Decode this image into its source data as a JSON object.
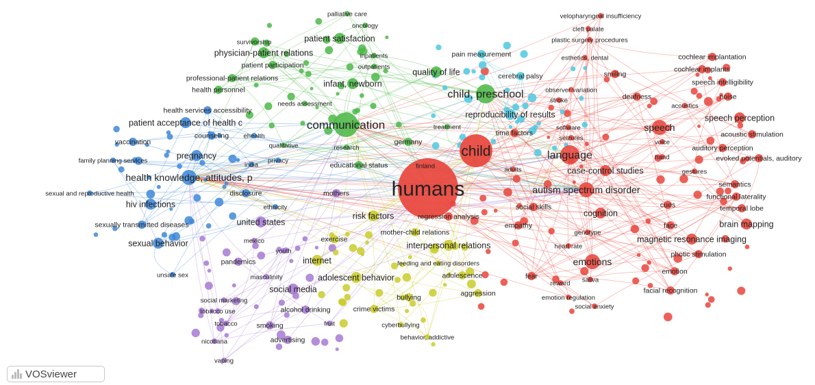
{
  "app": {
    "name": "VOSviewer"
  },
  "clusters": {
    "red": "#e8453c",
    "green": "#4cb848",
    "blue": "#3f88d8",
    "yellow": "#c9cc2c",
    "purple": "#a67ad2",
    "cyan": "#4ec8e0"
  },
  "terms": [
    {
      "label": "humans",
      "cluster": "red",
      "weight": 10
    },
    {
      "label": "child",
      "cluster": "red",
      "weight": 7
    },
    {
      "label": "language",
      "cluster": "red",
      "weight": 5
    },
    {
      "label": "autism spectrum disorder",
      "cluster": "red",
      "weight": 4
    },
    {
      "label": "speech",
      "cluster": "red",
      "weight": 4
    },
    {
      "label": "speech perception",
      "cluster": "red",
      "weight": 3
    },
    {
      "label": "emotions",
      "cluster": "red",
      "weight": 4
    },
    {
      "label": "magnetic resonance imaging",
      "cluster": "red",
      "weight": 3
    },
    {
      "label": "cognition",
      "cluster": "red",
      "weight": 3
    },
    {
      "label": "case-control studies",
      "cluster": "red",
      "weight": 3
    },
    {
      "label": "brain mapping",
      "cluster": "red",
      "weight": 3
    },
    {
      "label": "acoustic stimulation",
      "cluster": "red",
      "weight": 2
    },
    {
      "label": "auditory perception",
      "cluster": "red",
      "weight": 2
    },
    {
      "label": "speech intelligibility",
      "cluster": "red",
      "weight": 2
    },
    {
      "label": "cochlear implants",
      "cluster": "red",
      "weight": 2
    },
    {
      "label": "cochlear implantation",
      "cluster": "red",
      "weight": 2
    },
    {
      "label": "deafness",
      "cluster": "red",
      "weight": 2
    },
    {
      "label": "noise",
      "cluster": "red",
      "weight": 2
    },
    {
      "label": "acoustics",
      "cluster": "red",
      "weight": 1
    },
    {
      "label": "smiling",
      "cluster": "red",
      "weight": 2
    },
    {
      "label": "observer variation",
      "cluster": "red",
      "weight": 1
    },
    {
      "label": "esthetics, dental",
      "cluster": "red",
      "weight": 1
    },
    {
      "label": "plastic surgery procedures",
      "cluster": "red",
      "weight": 1
    },
    {
      "label": "cleft palate",
      "cluster": "red",
      "weight": 1
    },
    {
      "label": "velopharyngeal insufficiency",
      "cluster": "red",
      "weight": 1
    },
    {
      "label": "evoked potentials, auditory",
      "cluster": "red",
      "weight": 2
    },
    {
      "label": "gestures",
      "cluster": "red",
      "weight": 1
    },
    {
      "label": "hand",
      "cluster": "red",
      "weight": 1
    },
    {
      "label": "voice",
      "cluster": "red",
      "weight": 1
    },
    {
      "label": "semantics",
      "cluster": "red",
      "weight": 2
    },
    {
      "label": "functional laterality",
      "cluster": "red",
      "weight": 2
    },
    {
      "label": "temporal lobe",
      "cluster": "red",
      "weight": 2
    },
    {
      "label": "cues",
      "cluster": "red",
      "weight": 2
    },
    {
      "label": "face",
      "cluster": "red",
      "weight": 2
    },
    {
      "label": "photic stimulation",
      "cluster": "red",
      "weight": 2
    },
    {
      "label": "emotion",
      "cluster": "red",
      "weight": 2
    },
    {
      "label": "facial recognition",
      "cluster": "red",
      "weight": 2
    },
    {
      "label": "social anxiety",
      "cluster": "red",
      "weight": 1
    },
    {
      "label": "emotion regulation",
      "cluster": "red",
      "weight": 1
    },
    {
      "label": "saliva",
      "cluster": "red",
      "weight": 1
    },
    {
      "label": "reward",
      "cluster": "red",
      "weight": 1
    },
    {
      "label": "fear",
      "cluster": "red",
      "weight": 2
    },
    {
      "label": "heart rate",
      "cluster": "red",
      "weight": 1
    },
    {
      "label": "genotype",
      "cluster": "red",
      "weight": 1
    },
    {
      "label": "empathy",
      "cluster": "red",
      "weight": 2
    },
    {
      "label": "social skills",
      "cluster": "red",
      "weight": 2
    },
    {
      "label": "adults",
      "cluster": "red",
      "weight": 1
    },
    {
      "label": "software",
      "cluster": "red",
      "weight": 1
    },
    {
      "label": "seizures",
      "cluster": "red",
      "weight": 1
    },
    {
      "label": "stroke",
      "cluster": "red",
      "weight": 1
    },
    {
      "label": "time factors",
      "cluster": "red",
      "weight": 2
    },
    {
      "label": "regression analysis",
      "cluster": "red",
      "weight": 2
    },
    {
      "label": "finland",
      "cluster": "red",
      "weight": 1
    },
    {
      "label": "communication",
      "cluster": "green",
      "weight": 6
    },
    {
      "label": "child, preschool",
      "cluster": "green",
      "weight": 5
    },
    {
      "label": "quality of life",
      "cluster": "green",
      "weight": 3
    },
    {
      "label": "infant, newborn",
      "cluster": "green",
      "weight": 3
    },
    {
      "label": "patient satisfaction",
      "cluster": "green",
      "weight": 3
    },
    {
      "label": "physician-patient relations",
      "cluster": "green",
      "weight": 3
    },
    {
      "label": "patient participation",
      "cluster": "green",
      "weight": 2
    },
    {
      "label": "professional-patient relations",
      "cluster": "green",
      "weight": 2
    },
    {
      "label": "health personnel",
      "cluster": "green",
      "weight": 2
    },
    {
      "label": "needs assessment",
      "cluster": "green",
      "weight": 1
    },
    {
      "label": "palliative care",
      "cluster": "green",
      "weight": 1
    },
    {
      "label": "oncology",
      "cluster": "green",
      "weight": 1
    },
    {
      "label": "survivorship",
      "cluster": "green",
      "weight": 1
    },
    {
      "label": "inpatients",
      "cluster": "green",
      "weight": 1
    },
    {
      "label": "outpatients",
      "cluster": "green",
      "weight": 1
    },
    {
      "label": "germany",
      "cluster": "green",
      "weight": 2
    },
    {
      "label": "research",
      "cluster": "green",
      "weight": 1
    },
    {
      "label": "treatment",
      "cluster": "green",
      "weight": 1
    },
    {
      "label": "qualitative",
      "cluster": "green",
      "weight": 1
    },
    {
      "label": "educational status",
      "cluster": "green",
      "weight": 2
    },
    {
      "label": "reproducibility of results",
      "cluster": "cyan",
      "weight": 3
    },
    {
      "label": "pain measurement",
      "cluster": "cyan",
      "weight": 2
    },
    {
      "label": "cerebral palsy",
      "cluster": "cyan",
      "weight": 2
    },
    {
      "label": "health knowledge, attitudes, p",
      "cluster": "blue",
      "weight": 4
    },
    {
      "label": "pregnancy",
      "cluster": "blue",
      "weight": 3
    },
    {
      "label": "patient acceptance of health c",
      "cluster": "blue",
      "weight": 3
    },
    {
      "label": "health services accessibility",
      "cluster": "blue",
      "weight": 2
    },
    {
      "label": "vaccination",
      "cluster": "blue",
      "weight": 2
    },
    {
      "label": "counseling",
      "cluster": "blue",
      "weight": 2
    },
    {
      "label": "family planning services",
      "cluster": "blue",
      "weight": 1
    },
    {
      "label": "sexual and reproductive health",
      "cluster": "blue",
      "weight": 1
    },
    {
      "label": "hiv infections",
      "cluster": "blue",
      "weight": 3
    },
    {
      "label": "sexually transmitted diseases",
      "cluster": "blue",
      "weight": 2
    },
    {
      "label": "sexual behavior",
      "cluster": "blue",
      "weight": 3
    },
    {
      "label": "disclosure",
      "cluster": "blue",
      "weight": 2
    },
    {
      "label": "ethnicity",
      "cluster": "blue",
      "weight": 1
    },
    {
      "label": "india",
      "cluster": "blue",
      "weight": 1
    },
    {
      "label": "privacy",
      "cluster": "blue",
      "weight": 1
    },
    {
      "label": "ehealth",
      "cluster": "blue",
      "weight": 1
    },
    {
      "label": "unsafe sex",
      "cluster": "blue",
      "weight": 1
    },
    {
      "label": "united states",
      "cluster": "purple",
      "weight": 3
    },
    {
      "label": "mothers",
      "cluster": "purple",
      "weight": 2
    },
    {
      "label": "mexico",
      "cluster": "purple",
      "weight": 1
    },
    {
      "label": "youth",
      "cluster": "purple",
      "weight": 1
    },
    {
      "label": "pandemics",
      "cluster": "purple",
      "weight": 2
    },
    {
      "label": "masculinity",
      "cluster": "purple",
      "weight": 1
    },
    {
      "label": "social media",
      "cluster": "purple",
      "weight": 3
    },
    {
      "label": "social marketing",
      "cluster": "purple",
      "weight": 1
    },
    {
      "label": "tobacco use",
      "cluster": "purple",
      "weight": 1
    },
    {
      "label": "tobacco",
      "cluster": "purple",
      "weight": 1
    },
    {
      "label": "smoking",
      "cluster": "purple",
      "weight": 2
    },
    {
      "label": "alcohol drinking",
      "cluster": "purple",
      "weight": 2
    },
    {
      "label": "fruit",
      "cluster": "purple",
      "weight": 1
    },
    {
      "label": "advertising",
      "cluster": "purple",
      "weight": 2
    },
    {
      "label": "nicotiana",
      "cluster": "purple",
      "weight": 1
    },
    {
      "label": "vaping",
      "cluster": "purple",
      "weight": 1
    },
    {
      "label": "risk factors",
      "cluster": "yellow",
      "weight": 3
    },
    {
      "label": "mother-child relations",
      "cluster": "yellow",
      "weight": 2
    },
    {
      "label": "interpersonal relations",
      "cluster": "yellow",
      "weight": 3
    },
    {
      "label": "exercise",
      "cluster": "yellow",
      "weight": 2
    },
    {
      "label": "internet",
      "cluster": "yellow",
      "weight": 3
    },
    {
      "label": "feeding and eating disorders",
      "cluster": "yellow",
      "weight": 1
    },
    {
      "label": "adolescent behavior",
      "cluster": "yellow",
      "weight": 3
    },
    {
      "label": "adolescence",
      "cluster": "yellow",
      "weight": 2
    },
    {
      "label": "aggression",
      "cluster": "yellow",
      "weight": 2
    },
    {
      "label": "bullying",
      "cluster": "yellow",
      "weight": 2
    },
    {
      "label": "crime victims",
      "cluster": "yellow",
      "weight": 2
    },
    {
      "label": "cyberbullying",
      "cluster": "yellow",
      "weight": 1
    },
    {
      "label": "behavior, addictive",
      "cluster": "yellow",
      "weight": 1
    }
  ]
}
